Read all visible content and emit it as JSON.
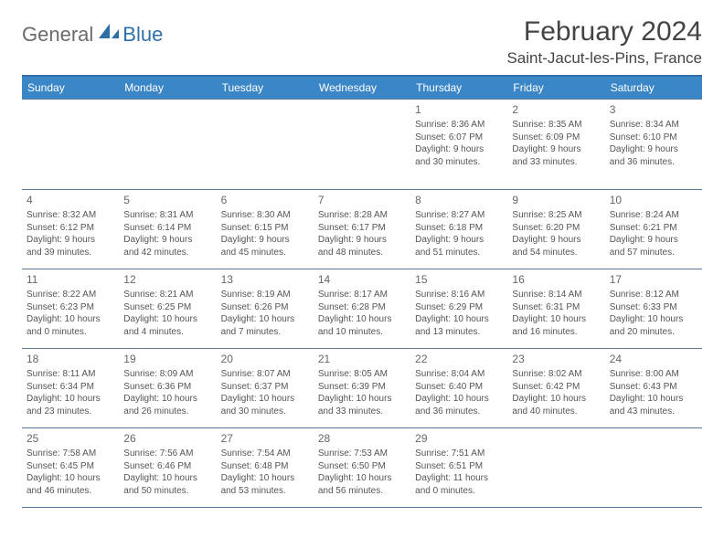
{
  "logo": {
    "part1": "General",
    "part2": "Blue"
  },
  "title": "February 2024",
  "location": "Saint-Jacut-les-Pins, France",
  "colors": {
    "header_bg": "#3b86c6",
    "header_border": "#2f6fa8",
    "row_border": "#5a7a98",
    "page_bg": "#ffffff",
    "text": "#555555",
    "logo_gray": "#6b6b6b",
    "logo_blue": "#2f6fa8"
  },
  "weekdays": [
    "Sunday",
    "Monday",
    "Tuesday",
    "Wednesday",
    "Thursday",
    "Friday",
    "Saturday"
  ],
  "weeks": [
    [
      null,
      null,
      null,
      null,
      {
        "n": "1",
        "sr": "Sunrise: 8:36 AM",
        "ss": "Sunset: 6:07 PM",
        "d1": "Daylight: 9 hours",
        "d2": "and 30 minutes."
      },
      {
        "n": "2",
        "sr": "Sunrise: 8:35 AM",
        "ss": "Sunset: 6:09 PM",
        "d1": "Daylight: 9 hours",
        "d2": "and 33 minutes."
      },
      {
        "n": "3",
        "sr": "Sunrise: 8:34 AM",
        "ss": "Sunset: 6:10 PM",
        "d1": "Daylight: 9 hours",
        "d2": "and 36 minutes."
      }
    ],
    [
      {
        "n": "4",
        "sr": "Sunrise: 8:32 AM",
        "ss": "Sunset: 6:12 PM",
        "d1": "Daylight: 9 hours",
        "d2": "and 39 minutes."
      },
      {
        "n": "5",
        "sr": "Sunrise: 8:31 AM",
        "ss": "Sunset: 6:14 PM",
        "d1": "Daylight: 9 hours",
        "d2": "and 42 minutes."
      },
      {
        "n": "6",
        "sr": "Sunrise: 8:30 AM",
        "ss": "Sunset: 6:15 PM",
        "d1": "Daylight: 9 hours",
        "d2": "and 45 minutes."
      },
      {
        "n": "7",
        "sr": "Sunrise: 8:28 AM",
        "ss": "Sunset: 6:17 PM",
        "d1": "Daylight: 9 hours",
        "d2": "and 48 minutes."
      },
      {
        "n": "8",
        "sr": "Sunrise: 8:27 AM",
        "ss": "Sunset: 6:18 PM",
        "d1": "Daylight: 9 hours",
        "d2": "and 51 minutes."
      },
      {
        "n": "9",
        "sr": "Sunrise: 8:25 AM",
        "ss": "Sunset: 6:20 PM",
        "d1": "Daylight: 9 hours",
        "d2": "and 54 minutes."
      },
      {
        "n": "10",
        "sr": "Sunrise: 8:24 AM",
        "ss": "Sunset: 6:21 PM",
        "d1": "Daylight: 9 hours",
        "d2": "and 57 minutes."
      }
    ],
    [
      {
        "n": "11",
        "sr": "Sunrise: 8:22 AM",
        "ss": "Sunset: 6:23 PM",
        "d1": "Daylight: 10 hours",
        "d2": "and 0 minutes."
      },
      {
        "n": "12",
        "sr": "Sunrise: 8:21 AM",
        "ss": "Sunset: 6:25 PM",
        "d1": "Daylight: 10 hours",
        "d2": "and 4 minutes."
      },
      {
        "n": "13",
        "sr": "Sunrise: 8:19 AM",
        "ss": "Sunset: 6:26 PM",
        "d1": "Daylight: 10 hours",
        "d2": "and 7 minutes."
      },
      {
        "n": "14",
        "sr": "Sunrise: 8:17 AM",
        "ss": "Sunset: 6:28 PM",
        "d1": "Daylight: 10 hours",
        "d2": "and 10 minutes."
      },
      {
        "n": "15",
        "sr": "Sunrise: 8:16 AM",
        "ss": "Sunset: 6:29 PM",
        "d1": "Daylight: 10 hours",
        "d2": "and 13 minutes."
      },
      {
        "n": "16",
        "sr": "Sunrise: 8:14 AM",
        "ss": "Sunset: 6:31 PM",
        "d1": "Daylight: 10 hours",
        "d2": "and 16 minutes."
      },
      {
        "n": "17",
        "sr": "Sunrise: 8:12 AM",
        "ss": "Sunset: 6:33 PM",
        "d1": "Daylight: 10 hours",
        "d2": "and 20 minutes."
      }
    ],
    [
      {
        "n": "18",
        "sr": "Sunrise: 8:11 AM",
        "ss": "Sunset: 6:34 PM",
        "d1": "Daylight: 10 hours",
        "d2": "and 23 minutes."
      },
      {
        "n": "19",
        "sr": "Sunrise: 8:09 AM",
        "ss": "Sunset: 6:36 PM",
        "d1": "Daylight: 10 hours",
        "d2": "and 26 minutes."
      },
      {
        "n": "20",
        "sr": "Sunrise: 8:07 AM",
        "ss": "Sunset: 6:37 PM",
        "d1": "Daylight: 10 hours",
        "d2": "and 30 minutes."
      },
      {
        "n": "21",
        "sr": "Sunrise: 8:05 AM",
        "ss": "Sunset: 6:39 PM",
        "d1": "Daylight: 10 hours",
        "d2": "and 33 minutes."
      },
      {
        "n": "22",
        "sr": "Sunrise: 8:04 AM",
        "ss": "Sunset: 6:40 PM",
        "d1": "Daylight: 10 hours",
        "d2": "and 36 minutes."
      },
      {
        "n": "23",
        "sr": "Sunrise: 8:02 AM",
        "ss": "Sunset: 6:42 PM",
        "d1": "Daylight: 10 hours",
        "d2": "and 40 minutes."
      },
      {
        "n": "24",
        "sr": "Sunrise: 8:00 AM",
        "ss": "Sunset: 6:43 PM",
        "d1": "Daylight: 10 hours",
        "d2": "and 43 minutes."
      }
    ],
    [
      {
        "n": "25",
        "sr": "Sunrise: 7:58 AM",
        "ss": "Sunset: 6:45 PM",
        "d1": "Daylight: 10 hours",
        "d2": "and 46 minutes."
      },
      {
        "n": "26",
        "sr": "Sunrise: 7:56 AM",
        "ss": "Sunset: 6:46 PM",
        "d1": "Daylight: 10 hours",
        "d2": "and 50 minutes."
      },
      {
        "n": "27",
        "sr": "Sunrise: 7:54 AM",
        "ss": "Sunset: 6:48 PM",
        "d1": "Daylight: 10 hours",
        "d2": "and 53 minutes."
      },
      {
        "n": "28",
        "sr": "Sunrise: 7:53 AM",
        "ss": "Sunset: 6:50 PM",
        "d1": "Daylight: 10 hours",
        "d2": "and 56 minutes."
      },
      {
        "n": "29",
        "sr": "Sunrise: 7:51 AM",
        "ss": "Sunset: 6:51 PM",
        "d1": "Daylight: 11 hours",
        "d2": "and 0 minutes."
      },
      null,
      null
    ]
  ]
}
